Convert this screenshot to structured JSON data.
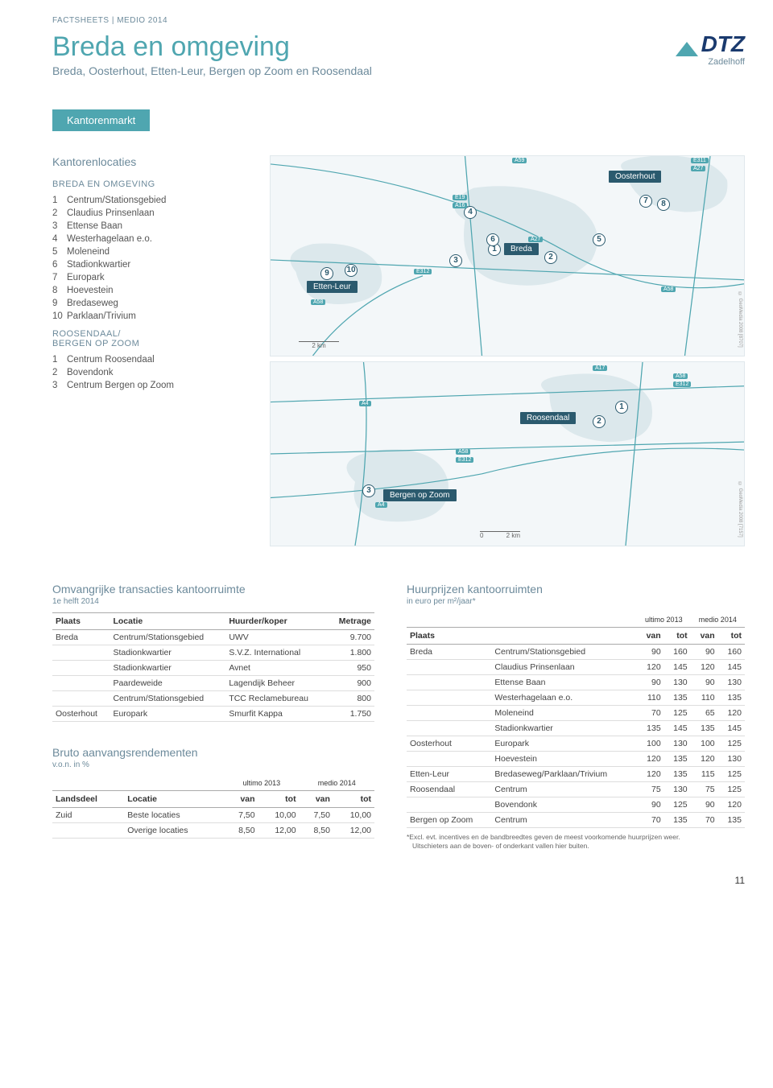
{
  "header_tag": "FACTSHEETS | MEDIO 2014",
  "page_title": "Breda en omgeving",
  "subtitle": "Breda, Oosterhout, Etten-Leur, Bergen op Zoom en Roosendaal",
  "logo": {
    "main": "DTZ",
    "sub": "Zadelhoff"
  },
  "section_tag": "Kantorenmarkt",
  "locations": {
    "heading": "Kantorenlocaties",
    "group1_title": "BREDA EN OMGEVING",
    "group1": [
      {
        "n": "1",
        "t": "Centrum/Stationsgebied"
      },
      {
        "n": "2",
        "t": "Claudius Prinsenlaan"
      },
      {
        "n": "3",
        "t": "Ettense Baan"
      },
      {
        "n": "4",
        "t": "Westerhagelaan e.o."
      },
      {
        "n": "5",
        "t": "Moleneind"
      },
      {
        "n": "6",
        "t": "Stadionkwartier"
      },
      {
        "n": "7",
        "t": "Europark"
      },
      {
        "n": "8",
        "t": "Hoevestein"
      },
      {
        "n": "9",
        "t": "Bredaseweg"
      },
      {
        "n": "10",
        "t": "Parklaan/Trivium"
      }
    ],
    "group2_title": "ROOSENDAAL/\nBERGEN OP ZOOM",
    "group2": [
      {
        "n": "1",
        "t": "Centrum Roosendaal"
      },
      {
        "n": "2",
        "t": "Bovendonk"
      },
      {
        "n": "3",
        "t": "Centrum Bergen op Zoom"
      }
    ]
  },
  "map_top": {
    "labels": {
      "oosterhout": "Oosterhout",
      "breda": "Breda",
      "etten": "Etten-Leur"
    },
    "roads": [
      "A59",
      "E311",
      "A27",
      "E19",
      "A16",
      "A27",
      "E312",
      "A58",
      "A58"
    ],
    "scale": "2 km",
    "copyright": "© GeoMedia 2008 [8707]"
  },
  "map_bottom": {
    "labels": {
      "roosendaal": "Roosendaal",
      "bergen": "Bergen op Zoom"
    },
    "roads": [
      "A17",
      "A58",
      "E312",
      "A4",
      "A58",
      "E312",
      "A4"
    ],
    "scale_l": "0",
    "scale_r": "2 km",
    "copyright": "© GeoMedia 2008 [7157]"
  },
  "transactions": {
    "title": "Omvangrijke transacties kantoorruimte",
    "sub": "1e helft 2014",
    "cols": [
      "Plaats",
      "Locatie",
      "Huurder/koper",
      "Metrage"
    ],
    "rows": [
      [
        "Breda",
        "Centrum/Stationsgebied",
        "UWV",
        "9.700"
      ],
      [
        "",
        "Stadionkwartier",
        "S.V.Z. International",
        "1.800"
      ],
      [
        "",
        "Stadionkwartier",
        "Avnet",
        "950"
      ],
      [
        "",
        "Paardeweide",
        "Lagendijk Beheer",
        "900"
      ],
      [
        "",
        "Centrum/Stationsgebied",
        "TCC Reclamebureau",
        "800"
      ],
      [
        "Oosterhout",
        "Europark",
        "Smurfit Kappa",
        "1.750"
      ]
    ]
  },
  "yields": {
    "title": "Bruto aanvangsrendementen",
    "sub": "v.o.n. in %",
    "period1": "ultimo 2013",
    "period2": "medio 2014",
    "cols": [
      "Landsdeel",
      "Locatie",
      "van",
      "tot",
      "van",
      "tot"
    ],
    "rows": [
      [
        "Zuid",
        "Beste locaties",
        "7,50",
        "10,00",
        "7,50",
        "10,00"
      ],
      [
        "",
        "Overige locaties",
        "8,50",
        "12,00",
        "8,50",
        "12,00"
      ]
    ]
  },
  "rents": {
    "title": "Huurprijzen kantoorruimten",
    "sub": "in euro per m²/jaar*",
    "period1": "ultimo 2013",
    "period2": "medio 2014",
    "cols": [
      "Plaats",
      "",
      "van",
      "tot",
      "van",
      "tot"
    ],
    "rows": [
      [
        "Breda",
        "Centrum/Stationsgebied",
        "90",
        "160",
        "90",
        "160"
      ],
      [
        "",
        "Claudius Prinsenlaan",
        "120",
        "145",
        "120",
        "145"
      ],
      [
        "",
        "Ettense Baan",
        "90",
        "130",
        "90",
        "130"
      ],
      [
        "",
        "Westerhagelaan e.o.",
        "110",
        "135",
        "110",
        "135"
      ],
      [
        "",
        "Moleneind",
        "70",
        "125",
        "65",
        "120"
      ],
      [
        "",
        "Stadionkwartier",
        "135",
        "145",
        "135",
        "145"
      ],
      [
        "Oosterhout",
        "Europark",
        "100",
        "130",
        "100",
        "125"
      ],
      [
        "",
        "Hoevestein",
        "120",
        "135",
        "120",
        "130"
      ],
      [
        "Etten-Leur",
        "Bredaseweg/Parklaan/Trivium",
        "120",
        "135",
        "115",
        "125"
      ],
      [
        "Roosendaal",
        "Centrum",
        "75",
        "130",
        "75",
        "125"
      ],
      [
        "",
        "Bovendonk",
        "90",
        "125",
        "90",
        "120"
      ],
      [
        "Bergen op Zoom",
        "Centrum",
        "70",
        "135",
        "70",
        "135"
      ]
    ],
    "footnote_l1": "*Excl. evt. incentives en de bandbreedtes geven de meest voorkomende huurprijzen weer.",
    "footnote_l2": "Uitschieters aan de boven- of onderkant vallen hier buiten."
  },
  "page_number": "11"
}
